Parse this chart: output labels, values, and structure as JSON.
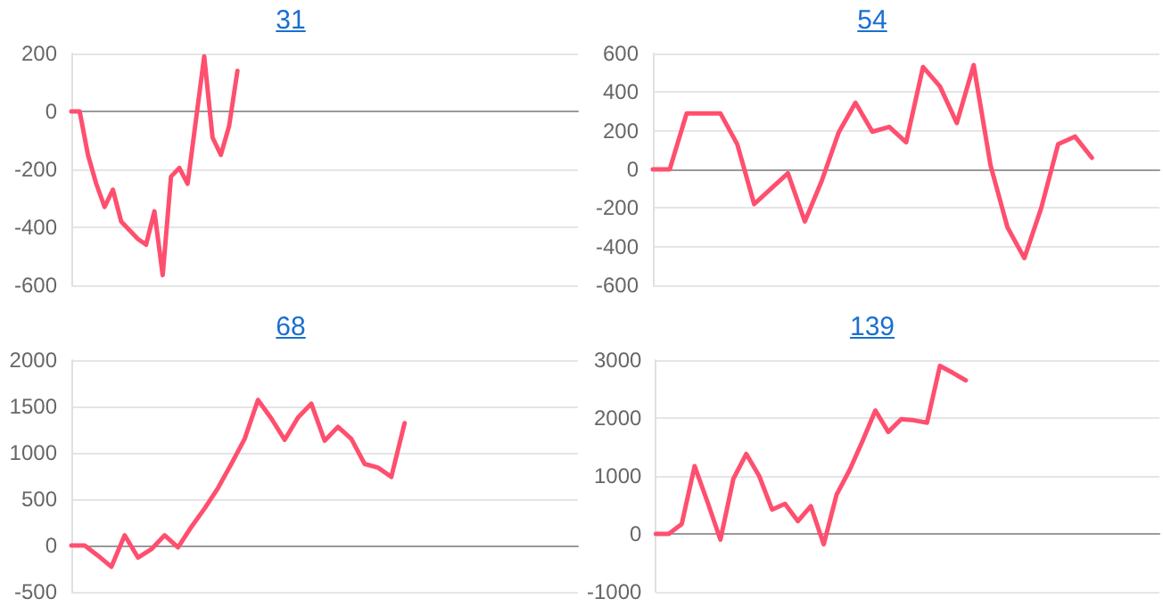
{
  "chart_data": [
    {
      "type": "line",
      "title": "31",
      "categories": [
        null,
        null,
        null,
        null,
        null,
        null,
        null,
        null,
        null,
        null,
        null,
        null,
        null,
        null,
        null,
        null,
        null,
        null,
        null,
        null,
        null,
        null,
        null,
        null,
        null,
        null,
        null,
        null,
        null,
        null,
        null,
        null,
        null,
        null,
        null,
        null,
        null,
        null,
        null,
        null,
        null,
        null,
        null,
        null,
        null,
        null,
        null,
        null,
        null,
        null,
        null,
        null,
        null,
        null,
        null,
        null,
        null,
        null,
        null,
        null,
        null,
        null
      ],
      "series": [
        {
          "color": "#ff4f6f",
          "values": [
            0,
            0,
            -150,
            -250,
            -330,
            -270,
            -380,
            -410,
            -440,
            -460,
            -345,
            -565,
            -225,
            -195,
            -250,
            -30,
            190,
            -90,
            -150,
            -50,
            140,
            null,
            null,
            null,
            null,
            null,
            null,
            null,
            null,
            null,
            null,
            null,
            null,
            null,
            null,
            null,
            null,
            null,
            null,
            null,
            null,
            null,
            null,
            null,
            null,
            null,
            null,
            null,
            null,
            null,
            null,
            null,
            null,
            null,
            null,
            null,
            null,
            null,
            null,
            null,
            null,
            null
          ]
        }
      ],
      "ylim": [
        -600,
        200
      ],
      "yticks": [
        -600,
        -400,
        -200,
        0,
        200
      ],
      "grid": "y",
      "tick_labels": "y",
      "marker": "none",
      "line_style": "solid"
    },
    {
      "type": "line",
      "title": "54",
      "categories": [
        null,
        null,
        null,
        null,
        null,
        null,
        null,
        null,
        null,
        null,
        null,
        null,
        null,
        null,
        null,
        null,
        null,
        null,
        null,
        null,
        null,
        null,
        null,
        null,
        null,
        null,
        null,
        null,
        null,
        null,
        null
      ],
      "series": [
        {
          "color": "#ff4f6f",
          "values": [
            0,
            0,
            290,
            290,
            290,
            130,
            -180,
            -100,
            -20,
            -270,
            -60,
            190,
            345,
            195,
            220,
            140,
            530,
            430,
            240,
            540,
            20,
            -300,
            -460,
            -200,
            130,
            170,
            60,
            null,
            null,
            null,
            null
          ]
        }
      ],
      "ylim": [
        -600,
        600
      ],
      "yticks": [
        -600,
        -400,
        -200,
        0,
        200,
        400,
        600
      ],
      "grid": "y",
      "tick_labels": "y",
      "marker": "none",
      "line_style": "solid"
    },
    {
      "type": "line",
      "title": "68",
      "categories": [
        null,
        null,
        null,
        null,
        null,
        null,
        null,
        null,
        null,
        null,
        null,
        null,
        null,
        null,
        null,
        null,
        null,
        null,
        null,
        null,
        null,
        null,
        null,
        null,
        null,
        null,
        null,
        null,
        null,
        null,
        null,
        null,
        null,
        null,
        null,
        null,
        null,
        null,
        null
      ],
      "series": [
        {
          "color": "#ff4f6f",
          "values": [
            0,
            0,
            -110,
            -230,
            110,
            -130,
            -40,
            110,
            -20,
            200,
            400,
            620,
            880,
            1150,
            1570,
            1370,
            1140,
            1380,
            1530,
            1130,
            1280,
            1150,
            880,
            840,
            740,
            1320,
            null,
            null,
            null,
            null,
            null,
            null,
            null,
            null,
            null,
            null,
            null,
            null,
            null
          ]
        }
      ],
      "ylim": [
        -500,
        2000
      ],
      "yticks": [
        -500,
        0,
        500,
        1000,
        1500,
        2000
      ],
      "grid": "y",
      "tick_labels": "y",
      "marker": "none",
      "line_style": "solid"
    },
    {
      "type": "line",
      "title": "139",
      "categories": [
        null,
        null,
        null,
        null,
        null,
        null,
        null,
        null,
        null,
        null,
        null,
        null,
        null,
        null,
        null,
        null,
        null,
        null,
        null,
        null,
        null,
        null,
        null,
        null,
        null,
        null,
        null,
        null,
        null,
        null,
        null,
        null,
        null,
        null,
        null,
        null,
        null,
        null,
        null,
        null
      ],
      "series": [
        {
          "color": "#ff4f6f",
          "values": [
            0,
            0,
            170,
            1170,
            550,
            -100,
            950,
            1380,
            1000,
            420,
            520,
            220,
            480,
            -180,
            680,
            1100,
            1600,
            2130,
            1760,
            1980,
            1960,
            1920,
            2900,
            2780,
            2650,
            null,
            null,
            null,
            null,
            null,
            null,
            null,
            null,
            null,
            null,
            null,
            null,
            null,
            null,
            null
          ]
        }
      ],
      "ylim": [
        -1000,
        3000
      ],
      "yticks": [
        -1000,
        0,
        1000,
        2000,
        3000
      ],
      "grid": "y",
      "tick_labels": "y",
      "marker": "none",
      "line_style": "solid"
    }
  ]
}
